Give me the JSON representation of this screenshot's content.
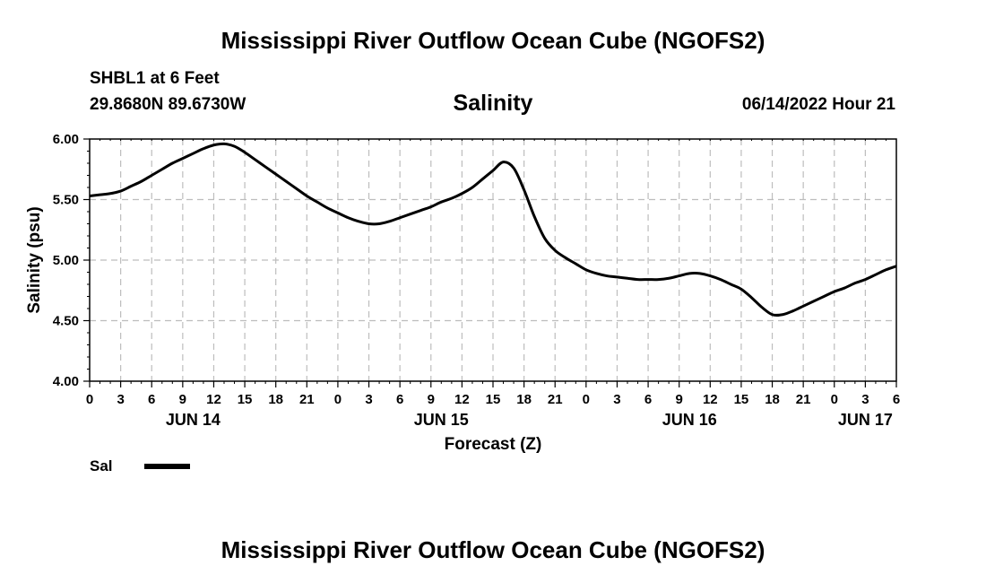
{
  "header": {
    "title": "Mississippi River Outflow Ocean Cube (NGOFS2)",
    "station": "SHBL1 at 6 Feet",
    "coords": "29.8680N  89.6730W",
    "chart_title": "Salinity",
    "datetime": "06/14/2022 Hour 21"
  },
  "footer": {
    "title": "Mississippi River Outflow Ocean Cube (NGOFS2)"
  },
  "legend": {
    "label": "Sal"
  },
  "chart_data": {
    "type": "line",
    "title": "Salinity",
    "xlabel": "Forecast (Z)",
    "ylabel": "Salinity (psu)",
    "xlim": [
      0,
      78
    ],
    "ylim": [
      4.0,
      6.0
    ],
    "x_unit": "hours since JUN 14 00Z",
    "x_tick_labels": [
      "0",
      "3",
      "6",
      "9",
      "12",
      "15",
      "18",
      "21",
      "0",
      "3",
      "6",
      "9",
      "12",
      "15",
      "18",
      "21",
      "0",
      "3",
      "6",
      "9",
      "12",
      "15",
      "18",
      "21",
      "0",
      "3",
      "6"
    ],
    "y_tick_labels": [
      "4.00",
      "4.50",
      "5.00",
      "5.50",
      "6.00"
    ],
    "y_ticks": [
      4.0,
      4.5,
      5.0,
      5.5,
      6.0
    ],
    "date_labels": [
      {
        "label": "JUN 14",
        "hour": 10
      },
      {
        "label": "JUN 15",
        "hour": 34
      },
      {
        "label": "JUN 16",
        "hour": 58
      },
      {
        "label": "JUN 17",
        "hour": 75
      }
    ],
    "grid": true,
    "series": [
      {
        "name": "Sal",
        "color": "#000000",
        "x": [
          0,
          1,
          2,
          3,
          4,
          5,
          6,
          7,
          8,
          9,
          10,
          11,
          12,
          13,
          14,
          15,
          16,
          17,
          18,
          19,
          20,
          21,
          22,
          23,
          24,
          25,
          26,
          27,
          28,
          29,
          30,
          31,
          32,
          33,
          34,
          35,
          36,
          37,
          38,
          39,
          40,
          41,
          42,
          43,
          44,
          45,
          46,
          47,
          48,
          49,
          50,
          51,
          52,
          53,
          54,
          55,
          56,
          57,
          58,
          59,
          60,
          61,
          62,
          63,
          64,
          65,
          66,
          67,
          68,
          69,
          70,
          71,
          72,
          73,
          74,
          75,
          76,
          77,
          78
        ],
        "values": [
          5.53,
          5.54,
          5.55,
          5.57,
          5.61,
          5.65,
          5.7,
          5.75,
          5.8,
          5.84,
          5.88,
          5.92,
          5.95,
          5.96,
          5.94,
          5.89,
          5.83,
          5.77,
          5.71,
          5.65,
          5.59,
          5.53,
          5.48,
          5.43,
          5.39,
          5.35,
          5.32,
          5.3,
          5.3,
          5.32,
          5.35,
          5.38,
          5.41,
          5.44,
          5.48,
          5.51,
          5.55,
          5.6,
          5.67,
          5.74,
          5.81,
          5.76,
          5.58,
          5.36,
          5.18,
          5.08,
          5.02,
          4.97,
          4.92,
          4.89,
          4.87,
          4.86,
          4.85,
          4.84,
          4.84,
          4.84,
          4.85,
          4.87,
          4.89,
          4.89,
          4.87,
          4.84,
          4.8,
          4.76,
          4.69,
          4.61,
          4.55,
          4.55,
          4.58,
          4.62,
          4.66,
          4.7,
          4.74,
          4.77,
          4.81,
          4.84,
          4.88,
          4.92,
          4.95
        ]
      }
    ]
  }
}
